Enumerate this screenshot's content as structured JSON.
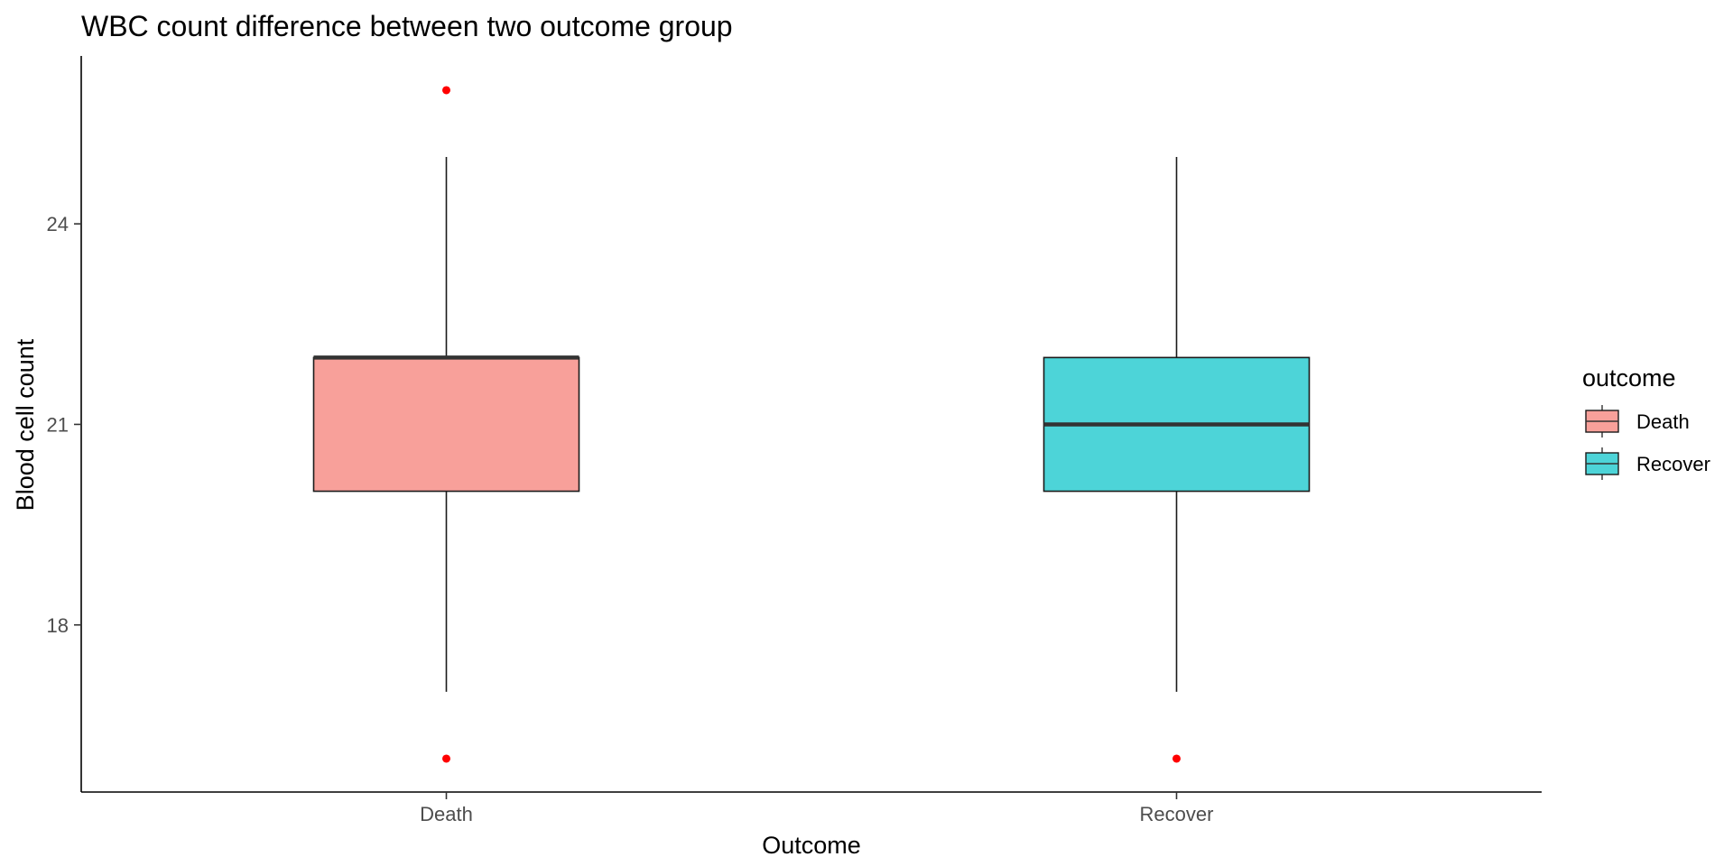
{
  "chart_data": {
    "type": "boxplot",
    "title": "WBC count difference between two outcome group",
    "xlabel": "Outcome",
    "ylabel": "Blood cell count",
    "categories": [
      "Death",
      "Recover"
    ],
    "y_ticks": [
      18,
      21,
      24
    ],
    "ylim": [
      15.5,
      26.5
    ],
    "boxes": [
      {
        "category": "Death",
        "whisker_low": 17,
        "q1": 20,
        "median": 22,
        "q3": 22,
        "whisker_high": 25,
        "outliers": [
          16,
          26
        ],
        "fill": "#f8a09a"
      },
      {
        "category": "Recover",
        "whisker_low": 17,
        "q1": 20,
        "median": 21,
        "q3": 22,
        "whisker_high": 25,
        "outliers": [
          16
        ],
        "fill": "#4dd4d8"
      }
    ],
    "outlier_color": "#ff0000",
    "grid": false,
    "legend": {
      "title": "outcome",
      "position": "right",
      "items": [
        {
          "label": "Death",
          "fill": "#f8a09a"
        },
        {
          "label": "Recover",
          "fill": "#4dd4d8"
        }
      ]
    }
  }
}
